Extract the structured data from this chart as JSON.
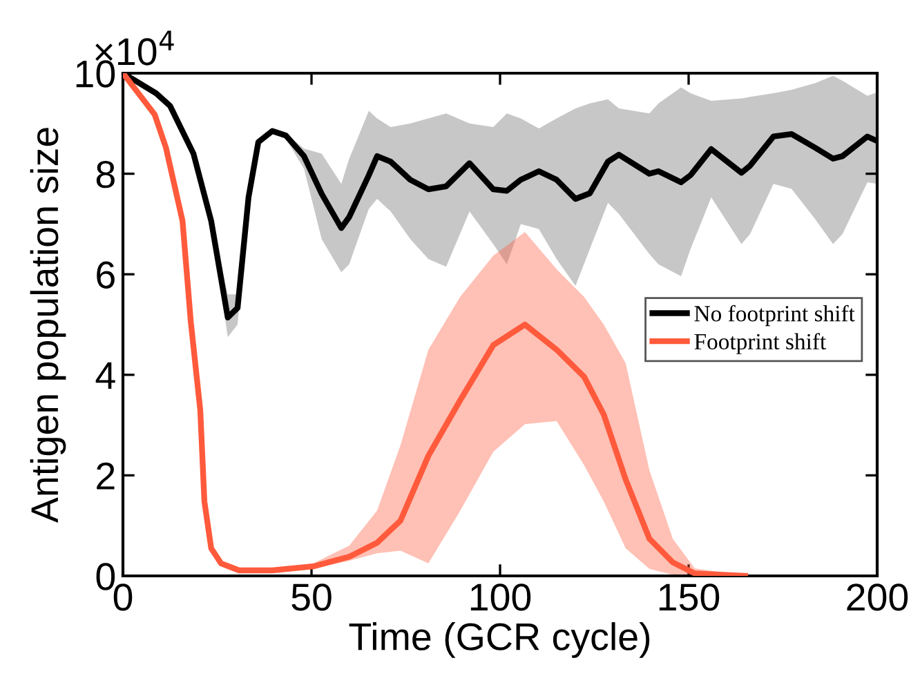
{
  "chart_data": {
    "type": "line",
    "xlabel": "Time (GCR cycle)",
    "ylabel": "Antigen population size",
    "annotations": [
      "×10$^{4}$"
    ],
    "xlim": [
      0,
      200
    ],
    "xticks": [
      0,
      50,
      100,
      150,
      200
    ],
    "ylim": [
      0,
      10
    ],
    "yticks": [
      0,
      2,
      4,
      6,
      8,
      10
    ],
    "grid": false,
    "legend": "right",
    "marker": "none",
    "line_style": "solid",
    "series": [
      {
        "name": "No footprint shift",
        "color": "#000000",
        "x": [
          0,
          8.8,
          12.5,
          18.7,
          23.4,
          27.8,
          30.4,
          33.3,
          35.9,
          39.6,
          43.2,
          48,
          52.7,
          57.9,
          60,
          65.2,
          67.4,
          71,
          76.2,
          81,
          85.7,
          91.9,
          98.2,
          101.8,
          105.5,
          110.3,
          115,
          120,
          123.8,
          128.6,
          131.5,
          139.6,
          142,
          148,
          150.5,
          156,
          164,
          166.3,
          172.5,
          177.3,
          183.5,
          188.3,
          190.8,
          197.4,
          200
        ],
        "values": [
          10,
          9.6,
          9.35,
          8.4,
          7.06,
          5.14,
          5.33,
          7.53,
          8.63,
          8.85,
          8.76,
          8.35,
          7.6,
          6.92,
          7.14,
          7.97,
          8.35,
          8.24,
          7.88,
          7.69,
          7.75,
          8.21,
          7.69,
          7.66,
          7.88,
          8.05,
          7.88,
          7.5,
          7.61,
          8.24,
          8.38,
          8.0,
          8.05,
          7.83,
          7.97,
          8.49,
          8.02,
          8.16,
          8.74,
          8.79,
          8.52,
          8.3,
          8.35,
          8.74,
          8.65
        ],
        "lower": [
          10,
          9.6,
          9.35,
          8.4,
          7.0,
          4.75,
          5.0,
          7.4,
          8.55,
          8.8,
          8.7,
          8.1,
          6.7,
          6.04,
          6.2,
          7.3,
          7.5,
          7.25,
          6.7,
          6.3,
          6.15,
          7.25,
          6.6,
          6.2,
          7.0,
          6.9,
          6.3,
          5.77,
          6.5,
          7.42,
          7.2,
          6.4,
          6.2,
          5.96,
          6.5,
          7.53,
          6.6,
          6.8,
          7.8,
          7.7,
          7.1,
          6.6,
          6.8,
          7.83,
          7.8
        ],
        "upper": [
          10,
          9.6,
          9.35,
          8.4,
          7.1,
          5.6,
          5.6,
          7.6,
          8.7,
          8.9,
          8.8,
          8.5,
          8.4,
          7.8,
          8.3,
          9.25,
          9.1,
          8.93,
          9.0,
          9.1,
          9.2,
          9.0,
          8.93,
          9.2,
          9.1,
          8.9,
          9.1,
          9.3,
          9.4,
          9.48,
          9.3,
          9.2,
          9.4,
          9.72,
          9.6,
          9.45,
          9.5,
          9.53,
          9.6,
          9.67,
          9.8,
          9.95,
          9.85,
          9.55,
          9.62
        ]
      },
      {
        "name": "Footprint shift",
        "color": "#ff5a3c",
        "x": [
          0,
          8.4,
          11.4,
          15.8,
          18,
          20.5,
          21.6,
          23.4,
          26,
          30.8,
          39.6,
          50.5,
          60,
          67.4,
          73.6,
          81,
          89.4,
          98.2,
          106.6,
          115,
          122.3,
          127.5,
          133.3,
          139.6,
          145.8,
          151.6,
          165
        ],
        "values": [
          10,
          9.18,
          8.52,
          7.06,
          5.05,
          3.3,
          1.48,
          0.55,
          0.25,
          0.11,
          0.11,
          0.19,
          0.38,
          0.66,
          1.1,
          2.39,
          3.49,
          4.59,
          5.0,
          4.5,
          3.96,
          3.21,
          1.92,
          0.74,
          0.27,
          0.05,
          0
        ],
        "lower": [
          10,
          9.18,
          8.52,
          7.06,
          5.05,
          3.3,
          1.48,
          0.55,
          0.25,
          0.11,
          0.11,
          0.15,
          0.3,
          0.45,
          0.5,
          0.25,
          1.29,
          2.47,
          3.02,
          3.08,
          2.2,
          1.48,
          0.55,
          0.14,
          0.02,
          0,
          0
        ],
        "upper": [
          10,
          9.18,
          8.52,
          7.06,
          5.05,
          3.3,
          1.48,
          0.55,
          0.25,
          0.11,
          0.11,
          0.25,
          0.6,
          1.3,
          2.6,
          4.5,
          5.55,
          6.37,
          6.84,
          6.1,
          5.55,
          5.0,
          4.23,
          2.1,
          0.74,
          0.15,
          0
        ]
      }
    ]
  }
}
